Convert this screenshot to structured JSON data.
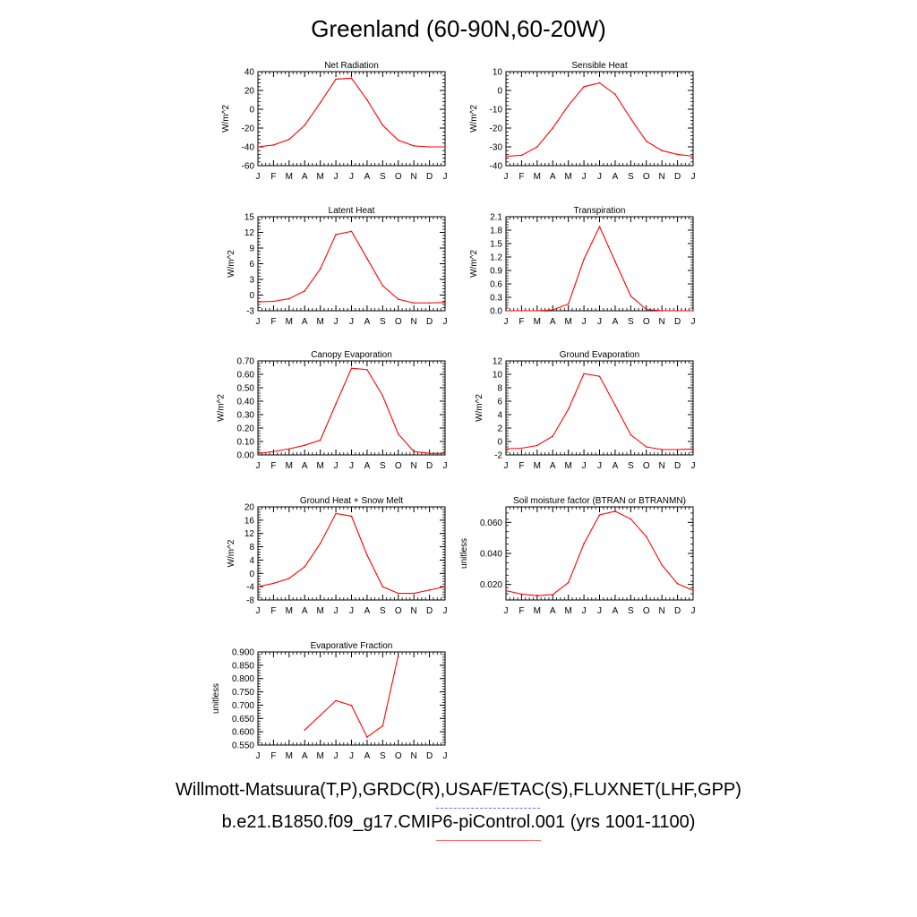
{
  "title": "Greenland (60-90N,60-20W)",
  "footer": {
    "obs_line": "Willmott-Matsuura(T,P),GRDC(R),USAF/ETAC(S),FLUXNET(LHF,GPP)",
    "case_line": "b.e21.B1850.f09_g17.CMIP6-piControl.001 (yrs 1001-1100)"
  },
  "colors": {
    "series": "#ff0000",
    "obs_key": "#6666ff",
    "case_key": "#ff6666"
  },
  "chart_data": [
    {
      "type": "line",
      "title": "Net Radiation",
      "ylabel": "W/m^2",
      "x": [
        "J",
        "F",
        "M",
        "A",
        "M",
        "J",
        "J",
        "A",
        "S",
        "O",
        "N",
        "D",
        "J"
      ],
      "ylim": [
        -60,
        40
      ],
      "yticks": [
        "-60",
        "-40",
        "-20",
        "0",
        "20",
        "40"
      ],
      "values": [
        -40,
        -38,
        -32,
        -17,
        7,
        32,
        33,
        10,
        -17,
        -33,
        -39,
        -40,
        -40
      ]
    },
    {
      "type": "line",
      "title": "Sensible Heat",
      "ylabel": "W/m^2",
      "x": [
        "J",
        "F",
        "M",
        "A",
        "M",
        "J",
        "J",
        "A",
        "S",
        "O",
        "N",
        "D",
        "J"
      ],
      "ylim": [
        -40,
        10
      ],
      "yticks": [
        "-40",
        "-30",
        "-20",
        "-10",
        "0",
        "10"
      ],
      "values": [
        -35,
        -34.5,
        -30,
        -20,
        -8,
        2,
        4,
        -2,
        -15,
        -27,
        -32,
        -34,
        -35
      ]
    },
    {
      "type": "line",
      "title": "Latent Heat",
      "ylabel": "W/m^2",
      "x": [
        "J",
        "F",
        "M",
        "A",
        "M",
        "J",
        "J",
        "A",
        "S",
        "O",
        "N",
        "D",
        "J"
      ],
      "ylim": [
        -3,
        15
      ],
      "yticks": [
        "-3",
        "0",
        "3",
        "6",
        "9",
        "12",
        "15"
      ],
      "values": [
        -1.3,
        -1.2,
        -0.7,
        0.8,
        5,
        11.6,
        12.2,
        7,
        1.8,
        -0.8,
        -1.5,
        -1.5,
        -1.4
      ]
    },
    {
      "type": "line",
      "title": "Transpiration",
      "ylabel": "W/m^2",
      "x": [
        "J",
        "F",
        "M",
        "A",
        "M",
        "J",
        "J",
        "A",
        "S",
        "O",
        "N",
        "D",
        "J"
      ],
      "ylim": [
        0,
        2.1
      ],
      "yticks": [
        "0.0",
        "0.3",
        "0.6",
        "0.9",
        "1.2",
        "1.5",
        "1.8",
        "2.1"
      ],
      "values": [
        0,
        0,
        0,
        0.02,
        0.15,
        1.15,
        1.88,
        1.1,
        0.33,
        0.03,
        0,
        0,
        0
      ]
    },
    {
      "type": "line",
      "title": "Canopy Evaporation",
      "ylabel": "W/m^2",
      "x": [
        "J",
        "F",
        "M",
        "A",
        "M",
        "J",
        "J",
        "A",
        "S",
        "O",
        "N",
        "D",
        "J"
      ],
      "ylim": [
        0,
        0.7
      ],
      "yticks": [
        "0.00",
        "0.10",
        "0.20",
        "0.30",
        "0.40",
        "0.50",
        "0.60",
        "0.70"
      ],
      "values": [
        0.01,
        0.025,
        0.045,
        0.072,
        0.11,
        0.38,
        0.645,
        0.635,
        0.44,
        0.155,
        0.025,
        0.012,
        0.012
      ]
    },
    {
      "type": "line",
      "title": "Ground Evaporation",
      "ylabel": "W/m^2",
      "x": [
        "J",
        "F",
        "M",
        "A",
        "M",
        "J",
        "J",
        "A",
        "S",
        "O",
        "N",
        "D",
        "J"
      ],
      "ylim": [
        -2,
        12
      ],
      "yticks": [
        "-2",
        "0",
        "2",
        "4",
        "6",
        "8",
        "10",
        "12"
      ],
      "values": [
        -1.1,
        -1,
        -0.6,
        0.8,
        4.8,
        10.1,
        9.7,
        5.4,
        1,
        -0.8,
        -1.2,
        -1.2,
        -1.1
      ]
    },
    {
      "type": "line",
      "title": "Ground Heat + Snow Melt",
      "ylabel": "W/m^2",
      "x": [
        "J",
        "F",
        "M",
        "A",
        "M",
        "J",
        "J",
        "A",
        "S",
        "O",
        "N",
        "D",
        "J"
      ],
      "ylim": [
        -8,
        20
      ],
      "yticks": [
        "-8",
        "-4",
        "0",
        "4",
        "8",
        "12",
        "16",
        "20"
      ],
      "values": [
        -4,
        -3,
        -1.5,
        2,
        9,
        18,
        17.2,
        5.5,
        -4,
        -6,
        -6,
        -5,
        -4
      ]
    },
    {
      "type": "line",
      "title": "Soil moisture factor (BTRAN or BTRANMN)",
      "ylabel": "unitless",
      "x": [
        "J",
        "F",
        "M",
        "A",
        "M",
        "J",
        "J",
        "A",
        "S",
        "O",
        "N",
        "D",
        "J"
      ],
      "ylim": [
        0.01,
        0.07
      ],
      "yticks": [
        "0.020",
        "0.040",
        "0.060"
      ],
      "ytick_values": [
        0.02,
        0.04,
        0.06
      ],
      "values": [
        0.016,
        0.0138,
        0.0128,
        0.0135,
        0.0212,
        0.0463,
        0.0648,
        0.0672,
        0.0622,
        0.0508,
        0.0325,
        0.0205,
        0.0162
      ]
    },
    {
      "type": "line",
      "title": "Evaporative Fraction",
      "ylabel": "unitless",
      "x": [
        "J",
        "F",
        "M",
        "A",
        "M",
        "J",
        "J",
        "A",
        "S",
        "O",
        "N",
        "D",
        "J"
      ],
      "ylim": [
        0.55,
        0.9
      ],
      "yticks": [
        "0.550",
        "0.600",
        "0.650",
        "0.700",
        "0.750",
        "0.800",
        "0.850",
        "0.900"
      ],
      "values": [
        null,
        null,
        null,
        0.607,
        0.662,
        0.717,
        0.699,
        0.58,
        0.622,
        0.887,
        null,
        null,
        null
      ]
    }
  ]
}
